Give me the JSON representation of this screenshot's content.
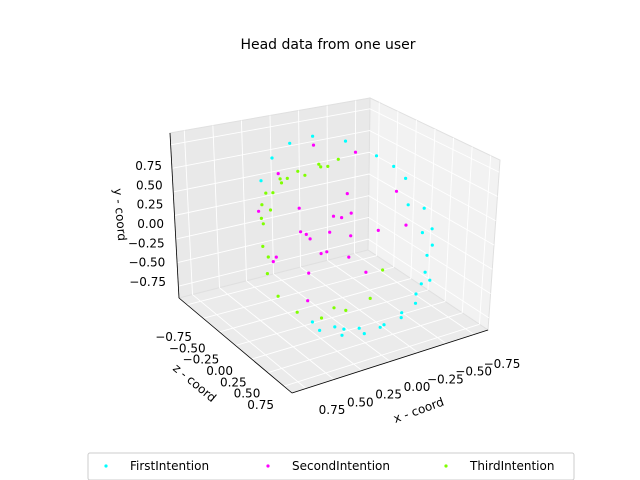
{
  "chart_data": {
    "type": "scatter",
    "projection": "3d",
    "title": "Head data from one user",
    "xlabel": "x - coord",
    "ylabel": "y - coord",
    "zlabel": "z - coord",
    "x_ticks": [
      "0.75",
      "0.50",
      "0.25",
      "0.00",
      "−0.25",
      "−0.50",
      "−0.75"
    ],
    "y_ticks": [
      "0.75",
      "0.50",
      "0.25",
      "0.00",
      "−0.25",
      "−0.50",
      "−0.75"
    ],
    "z_ticks": [
      "−0.75",
      "−0.50",
      "−0.25",
      "0.00",
      "0.25",
      "0.50",
      "0.75"
    ],
    "xlim": [
      -0.9,
      0.9
    ],
    "ylim": [
      -0.9,
      0.9
    ],
    "zlim": [
      -0.9,
      0.9
    ],
    "grid": true,
    "legend_position": "bottom-center",
    "series": [
      {
        "name": "FirstIntention",
        "color": "#00ffff",
        "points": [
          [
            0.55,
            -0.55,
            0.55
          ],
          [
            0.4,
            -0.6,
            0.65
          ],
          [
            0.2,
            -0.65,
            0.7
          ],
          [
            0.0,
            -0.7,
            0.7
          ],
          [
            -0.2,
            -0.65,
            0.7
          ],
          [
            -0.4,
            -0.6,
            0.6
          ],
          [
            -0.6,
            -0.45,
            0.5
          ],
          [
            -0.75,
            -0.2,
            0.3
          ],
          [
            -0.8,
            0.1,
            0.1
          ],
          [
            -0.75,
            0.35,
            -0.1
          ],
          [
            -0.6,
            0.55,
            -0.3
          ],
          [
            -0.4,
            0.7,
            -0.45
          ],
          [
            -0.15,
            0.78,
            -0.55
          ],
          [
            0.1,
            0.8,
            -0.5
          ],
          [
            0.3,
            0.72,
            -0.45
          ],
          [
            0.5,
            0.6,
            -0.3
          ],
          [
            0.3,
            -0.75,
            0.6
          ],
          [
            0.1,
            -0.78,
            0.62
          ],
          [
            -0.1,
            -0.75,
            0.6
          ],
          [
            -0.3,
            -0.7,
            0.55
          ],
          [
            -0.5,
            -0.6,
            0.45
          ],
          [
            -0.65,
            -0.45,
            0.35
          ],
          [
            -0.7,
            -0.3,
            0.3
          ],
          [
            -0.72,
            -0.1,
            0.2
          ],
          [
            -0.68,
            0.15,
            0.05
          ],
          [
            0.45,
            -0.7,
            0.5
          ],
          [
            0.25,
            -0.72,
            0.55
          ],
          [
            -0.55,
            -0.5,
            0.45
          ],
          [
            -0.78,
            -0.05,
            0.25
          ],
          [
            -0.7,
            0.45,
            -0.2
          ]
        ]
      },
      {
        "name": "SecondIntention",
        "color": "#ff00ff",
        "points": [
          [
            0.1,
            0.1,
            0.1
          ],
          [
            0.0,
            0.2,
            0.0
          ],
          [
            -0.1,
            0.0,
            0.1
          ],
          [
            0.15,
            -0.15,
            0.05
          ],
          [
            0.25,
            0.05,
            -0.1
          ],
          [
            -0.05,
            -0.2,
            0.15
          ],
          [
            0.05,
            0.3,
            0.2
          ],
          [
            -0.2,
            0.15,
            -0.05
          ],
          [
            0.3,
            -0.3,
            0.1
          ],
          [
            0.2,
            0.25,
            -0.2
          ],
          [
            -0.15,
            -0.35,
            0.25
          ],
          [
            0.1,
            -0.1,
            -0.25
          ],
          [
            -0.3,
            0.05,
            0.2
          ],
          [
            0.35,
            0.15,
            0.2
          ],
          [
            0.0,
            -0.25,
            -0.1
          ],
          [
            -0.6,
            0.3,
            0.0
          ],
          [
            -0.4,
            0.65,
            -0.3
          ],
          [
            0.0,
            0.85,
            -0.3
          ],
          [
            0.4,
            0.7,
            -0.2
          ],
          [
            0.65,
            0.4,
            -0.1
          ],
          [
            0.7,
            0.0,
            0.2
          ],
          [
            0.5,
            -0.4,
            0.4
          ],
          [
            -0.5,
            0.1,
            0.3
          ],
          [
            -0.1,
            0.45,
            0.05
          ],
          [
            0.45,
            -0.2,
            -0.15
          ]
        ]
      },
      {
        "name": "ThirdIntention",
        "color": "#7fff00",
        "points": [
          [
            0.75,
            0.45,
            0.1
          ],
          [
            0.65,
            0.5,
            -0.05
          ],
          [
            0.55,
            0.55,
            -0.15
          ],
          [
            0.45,
            0.5,
            -0.2
          ],
          [
            0.35,
            0.6,
            -0.25
          ],
          [
            0.25,
            0.55,
            -0.3
          ],
          [
            0.15,
            0.6,
            -0.3
          ],
          [
            0.05,
            0.5,
            -0.35
          ],
          [
            -0.1,
            0.55,
            -0.35
          ],
          [
            -0.2,
            0.5,
            -0.4
          ],
          [
            -0.3,
            0.55,
            -0.4
          ],
          [
            0.8,
            0.2,
            0.2
          ],
          [
            0.82,
            -0.05,
            0.3
          ],
          [
            0.75,
            -0.3,
            0.35
          ],
          [
            0.6,
            -0.5,
            0.4
          ],
          [
            0.4,
            -0.6,
            0.45
          ],
          [
            0.2,
            -0.55,
            0.5
          ],
          [
            0.0,
            -0.45,
            0.55
          ],
          [
            -0.15,
            -0.2,
            0.5
          ],
          [
            0.6,
            0.45,
            0.0
          ],
          [
            0.4,
            0.62,
            -0.15
          ],
          [
            -0.05,
            0.62,
            -0.3
          ],
          [
            0.7,
            0.35,
            0.05
          ],
          [
            0.3,
            -0.5,
            0.48
          ],
          [
            0.78,
            0.1,
            0.25
          ]
        ]
      }
    ]
  },
  "legend": {
    "items": [
      {
        "label": "FirstIntention",
        "color": "#00ffff"
      },
      {
        "label": "SecondIntention",
        "color": "#ff00ff"
      },
      {
        "label": "ThirdIntention",
        "color": "#7fff00"
      }
    ]
  }
}
